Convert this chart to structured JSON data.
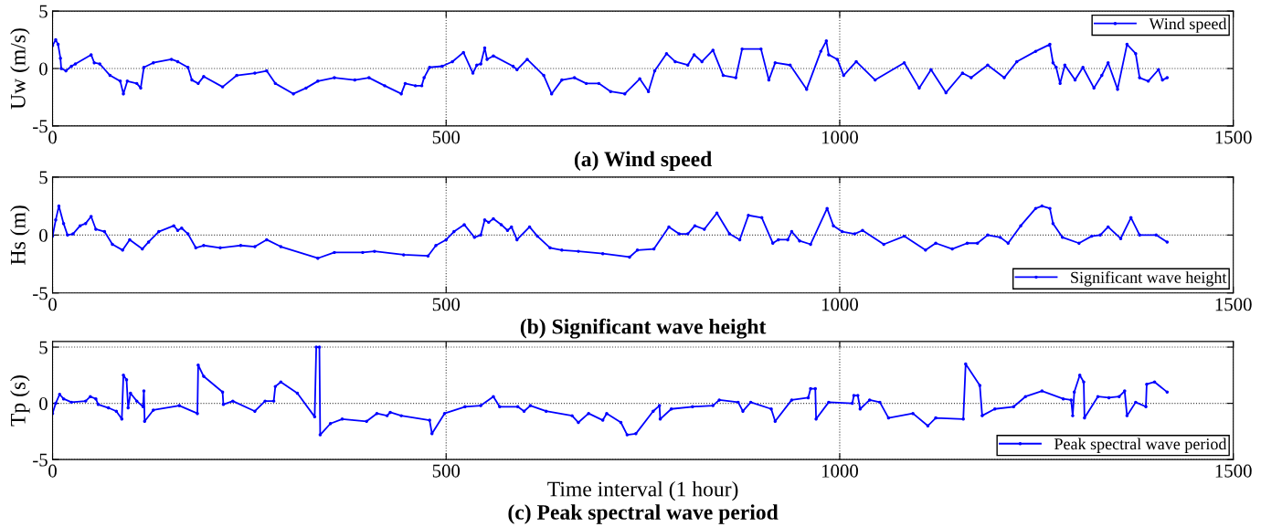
{
  "chart_data": [
    {
      "type": "line",
      "title": "(a) Wind speed",
      "ylabel": "Uw (m/s)",
      "xlim": [
        0,
        1500
      ],
      "xticks": [
        0,
        500,
        1000,
        1500
      ],
      "ylim": [
        -5,
        5
      ],
      "yticks": [
        -5,
        0,
        5
      ],
      "grid": true,
      "legend": "top right",
      "marker": "circle",
      "line_style": "solid",
      "series": [
        {
          "name": "Wind speed",
          "color": "#0000ff",
          "x": [
            0,
            4,
            7,
            10,
            11,
            17,
            24,
            29,
            49,
            53,
            60,
            73,
            86,
            90,
            95,
            107,
            112,
            116,
            128,
            151,
            159,
            172,
            177,
            185,
            192,
            216,
            234,
            257,
            272,
            283,
            306,
            322,
            337,
            358,
            384,
            402,
            422,
            443,
            448,
            461,
            469,
            472,
            479,
            495,
            508,
            522,
            534,
            539,
            544,
            549,
            552,
            560,
            585,
            590,
            603,
            624,
            634,
            647,
            663,
            678,
            694,
            709,
            727,
            746,
            757,
            765,
            780,
            791,
            807,
            815,
            825,
            839,
            852,
            868,
            876,
            900,
            910,
            918,
            937,
            958,
            976,
            983,
            986,
            997,
            1005,
            1021,
            1045,
            1082,
            1101,
            1116,
            1135,
            1156,
            1167,
            1188,
            1209,
            1225,
            1249,
            1267,
            1271,
            1275,
            1280,
            1286,
            1299,
            1309,
            1323,
            1333,
            1341,
            1353,
            1365,
            1376,
            1381,
            1392,
            1405,
            1410,
            1416
          ],
          "values": [
            2.0,
            2.5,
            2.1,
            0.9,
            0,
            -0.2,
            0.2,
            0.4,
            1.2,
            0.5,
            0.4,
            -0.6,
            -1.1,
            -2.2,
            -1.1,
            -1.3,
            -1.7,
            0.1,
            0.5,
            0.8,
            0.6,
            0.1,
            -1.0,
            -1.3,
            -0.7,
            -1.6,
            -0.6,
            -0.4,
            -0.2,
            -1.3,
            -2.2,
            -1.7,
            -1.1,
            -0.8,
            -1.0,
            -0.8,
            -1.5,
            -2.2,
            -1.3,
            -1.5,
            -1.5,
            -0.8,
            0.1,
            0.2,
            0.6,
            1.4,
            -0.4,
            0.3,
            0.4,
            1.8,
            0.8,
            1.1,
            0.2,
            -0.1,
            0.8,
            -0.6,
            -2.2,
            -1.0,
            -0.8,
            -1.3,
            -1.3,
            -2.0,
            -2.2,
            -0.9,
            -2.0,
            -0.2,
            1.3,
            0.6,
            0.3,
            1.2,
            0.6,
            1.6,
            -0.6,
            -0.8,
            1.7,
            1.7,
            -1.0,
            0.5,
            0.3,
            -1.8,
            1.5,
            2.4,
            1.2,
            0.8,
            -0.6,
            0.6,
            -1.0,
            0.5,
            -1.7,
            -0.1,
            -2.1,
            -0.4,
            -0.8,
            0.3,
            -0.8,
            0.6,
            1.5,
            2.1,
            0.5,
            0.1,
            -1.3,
            0.3,
            -1.0,
            0.1,
            -1.7,
            -0.6,
            0.5,
            -1.8,
            2.1,
            1.3,
            -0.8,
            -1.1,
            -0.1,
            -1.0,
            -0.8
          ]
        }
      ]
    },
    {
      "type": "line",
      "title": "(b) Significant wave height",
      "ylabel": "Hs (m)",
      "xlim": [
        0,
        1500
      ],
      "xticks": [
        0,
        500,
        1000,
        1500
      ],
      "ylim": [
        -5,
        5
      ],
      "yticks": [
        -5,
        0,
        5
      ],
      "grid": true,
      "legend": "bottom right",
      "marker": "circle",
      "line_style": "solid",
      "series": [
        {
          "name": "Significant wave height",
          "color": "#0000ff",
          "x": [
            0,
            4,
            8,
            14,
            19,
            26,
            35,
            42,
            49,
            55,
            66,
            76,
            89,
            98,
            114,
            122,
            135,
            154,
            159,
            164,
            172,
            182,
            192,
            213,
            239,
            257,
            272,
            290,
            337,
            358,
            394,
            409,
            446,
            477,
            487,
            500,
            510,
            523,
            536,
            544,
            549,
            554,
            560,
            570,
            578,
            583,
            590,
            606,
            616,
            632,
            647,
            668,
            699,
            733,
            743,
            764,
            783,
            796,
            807,
            816,
            828,
            844,
            860,
            873,
            884,
            901,
            915,
            922,
            934,
            939,
            949,
            963,
            984,
            992,
            1003,
            1019,
            1029,
            1056,
            1082,
            1109,
            1122,
            1143,
            1162,
            1175,
            1188,
            1204,
            1214,
            1230,
            1249,
            1257,
            1267,
            1271,
            1283,
            1304,
            1320,
            1331,
            1341,
            1357,
            1370,
            1381,
            1402,
            1416
          ],
          "values": [
            -0.1,
            1.3,
            2.5,
            1.0,
            0,
            0.1,
            0.8,
            1.0,
            1.6,
            0.5,
            0.3,
            -0.8,
            -1.3,
            -0.4,
            -1.2,
            -0.6,
            0.3,
            0.8,
            0.4,
            0.6,
            0.1,
            -1.1,
            -0.9,
            -1.1,
            -0.9,
            -1.0,
            -0.4,
            -1.0,
            -2.0,
            -1.5,
            -1.5,
            -1.4,
            -1.7,
            -1.8,
            -0.9,
            -0.4,
            0.3,
            0.9,
            -0.2,
            0,
            1.3,
            1.1,
            1.4,
            0.9,
            0.4,
            0.7,
            -0.4,
            0.7,
            -0.1,
            -1.1,
            -1.3,
            -1.4,
            -1.6,
            -1.9,
            -1.3,
            -1.2,
            0.7,
            0.1,
            0.1,
            0.8,
            0.5,
            1.9,
            0.1,
            -0.4,
            1.7,
            1.5,
            -0.7,
            -0.4,
            -0.4,
            0.3,
            -0.5,
            -0.8,
            2.3,
            0.8,
            0.3,
            0.1,
            0.4,
            -0.8,
            -0.1,
            -1.3,
            -0.7,
            -1.2,
            -0.7,
            -0.7,
            0,
            -0.2,
            -0.7,
            0.8,
            2.3,
            2.5,
            2.3,
            1.0,
            -0.2,
            -0.7,
            -0.1,
            0,
            0.7,
            -0.3,
            1.5,
            0,
            0,
            -0.6
          ]
        }
      ]
    },
    {
      "type": "line",
      "title": "(c) Peak spectral wave period",
      "xlabel": "Time interval (1 hour)",
      "ylabel": "Tp (s)",
      "xlim": [
        0,
        1500
      ],
      "xticks": [
        0,
        500,
        1000,
        1500
      ],
      "ylim": [
        -5,
        5.5
      ],
      "yticks": [
        -5,
        0,
        5
      ],
      "grid": true,
      "legend": "bottom right",
      "marker": "circle",
      "line_style": "solid",
      "series": [
        {
          "name": "Peak spectral wave period",
          "color": "#0000ff",
          "x": [
            0,
            4,
            9,
            14,
            24,
            42,
            48,
            55,
            58,
            71,
            81,
            88,
            90,
            94,
            96,
            99,
            107,
            115,
            116,
            117,
            128,
            161,
            184,
            185,
            192,
            216,
            217,
            229,
            257,
            270,
            281,
            283,
            290,
            311,
            333,
            335,
            339,
            340,
            353,
            368,
            399,
            412,
            425,
            429,
            443,
            479,
            482,
            498,
            524,
            544,
            560,
            568,
            591,
            599,
            607,
            627,
            660,
            668,
            681,
            699,
            704,
            722,
            730,
            741,
            763,
            771,
            772,
            786,
            813,
            839,
            847,
            871,
            877,
            887,
            913,
            918,
            939,
            960,
            963,
            969,
            970,
            986,
            1016,
            1018,
            1023,
            1026,
            1038,
            1051,
            1062,
            1093,
            1112,
            1122,
            1157,
            1160,
            1178,
            1181,
            1197,
            1221,
            1236,
            1257,
            1284,
            1294,
            1296,
            1298,
            1305,
            1310,
            1311,
            1328,
            1342,
            1355,
            1362,
            1365,
            1376,
            1389,
            1390,
            1400,
            1416
          ],
          "values": [
            -0.9,
            0,
            0.8,
            0.4,
            0.1,
            0.2,
            0.6,
            0.4,
            -0.1,
            -0.4,
            -0.7,
            -1.4,
            2.5,
            2.1,
            -0.4,
            0.9,
            0.2,
            -0.3,
            1.1,
            -1.6,
            -0.6,
            -0.2,
            -0.9,
            3.4,
            2.4,
            1.0,
            -0.1,
            0.2,
            -0.7,
            0.2,
            0.2,
            1.5,
            1.9,
            0.9,
            -1.2,
            5.0,
            5.0,
            -2.8,
            -1.8,
            -1.4,
            -1.6,
            -0.9,
            -1.1,
            -0.8,
            -1.1,
            -1.5,
            -2.7,
            -0.9,
            -0.3,
            -0.2,
            0.6,
            -0.3,
            -0.3,
            -0.7,
            -0.2,
            -0.7,
            -1.1,
            -1.7,
            -0.9,
            -1.5,
            -0.9,
            -1.7,
            -2.8,
            -2.7,
            -0.7,
            -0.2,
            -1.4,
            -0.5,
            -0.3,
            -0.2,
            0.3,
            0.1,
            -0.7,
            0.1,
            -0.5,
            -1.6,
            0.3,
            0.5,
            1.3,
            1.3,
            -1.4,
            0.1,
            0,
            0.7,
            0.7,
            -0.5,
            0.3,
            0.1,
            -1.3,
            -0.9,
            -2.0,
            -1.3,
            -1.4,
            3.5,
            1.6,
            -1.1,
            -0.5,
            -0.3,
            0.6,
            1.1,
            0.4,
            0.3,
            -1.1,
            1.0,
            2.5,
            1.9,
            -1.3,
            0.6,
            0.5,
            0.6,
            1.1,
            -1.1,
            0.1,
            -0.3,
            1.7,
            1.9,
            1.0
          ]
        }
      ]
    }
  ]
}
